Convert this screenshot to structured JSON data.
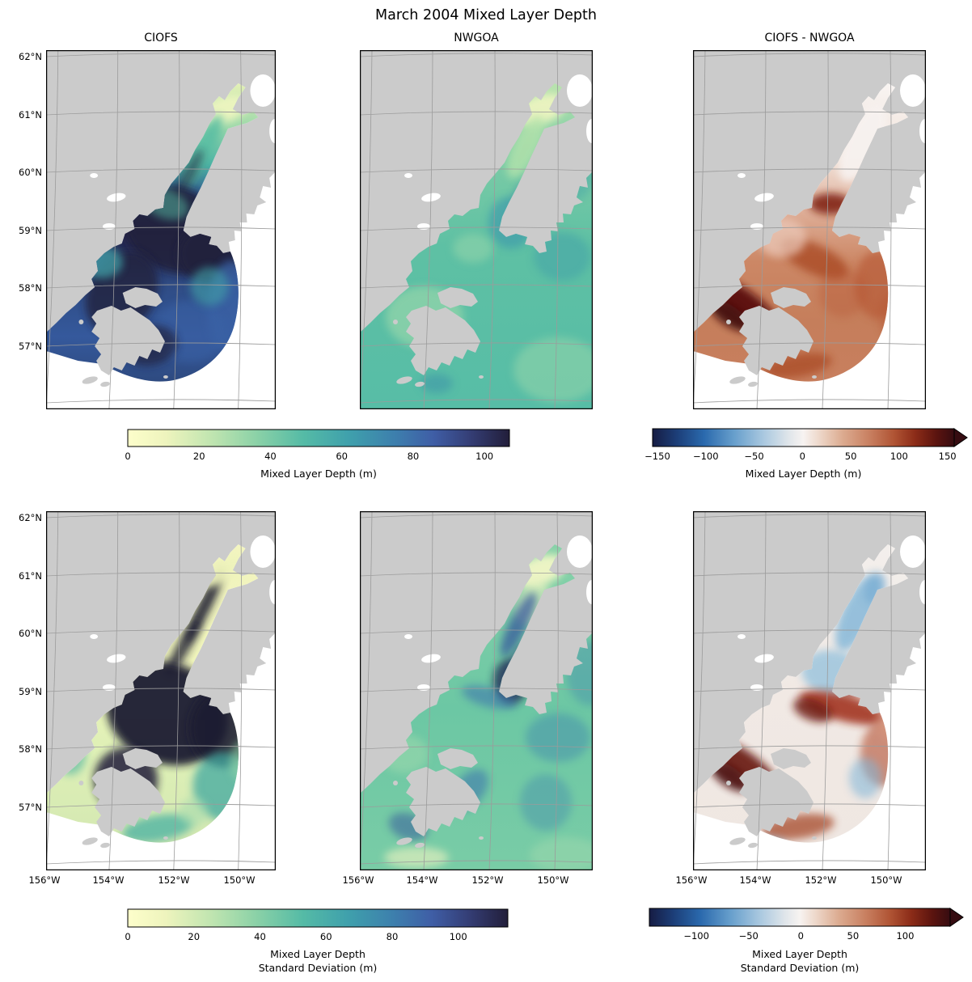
{
  "figure": {
    "title": "March 2004 Mixed Layer Depth",
    "background": "#ffffff",
    "land_color": "#cbcbcb",
    "nodata_color": "#ffffff",
    "graticule_color": "#9b9b9b",
    "border_color": "#000000"
  },
  "map": {
    "lat_ticks": [
      "62°N",
      "61°N",
      "60°N",
      "59°N",
      "58°N",
      "57°N"
    ],
    "lon_ticks": [
      "156°W",
      "154°W",
      "152°W",
      "150°W"
    ]
  },
  "panels": [
    {
      "id": "ciofs-mld",
      "title": "CIOFS",
      "row": 0,
      "col": 0,
      "kind": "ciofs",
      "show_lat": true,
      "show_lon": false,
      "base_stops": [
        [
          0,
          "#e4f1b6"
        ],
        [
          0.15,
          "#9bd8aa"
        ],
        [
          0.27,
          "#4bb2a5"
        ],
        [
          0.38,
          "#30558d"
        ],
        [
          0.5,
          "#242247"
        ],
        [
          0.68,
          "#2f4c85"
        ],
        [
          0.85,
          "#35599c"
        ],
        [
          1,
          "#2e4a80"
        ]
      ],
      "blob_colors": [
        "#edf5bf",
        "#59bda3",
        "#20203e",
        "#3a62a5",
        "#43a2a8",
        "#8fd3a8"
      ]
    },
    {
      "id": "nwgoa-mld",
      "title": "NWGOA",
      "row": 0,
      "col": 1,
      "kind": "nwgoa",
      "show_lat": false,
      "show_lon": false,
      "base_stops": [
        [
          0,
          "#b9e3ae"
        ],
        [
          0.2,
          "#7fcda6"
        ],
        [
          0.5,
          "#5ec0a4"
        ],
        [
          1,
          "#57bda6"
        ]
      ],
      "blob_colors": [
        "#ecf4c0",
        "#b4e2ab",
        "#3f9cab",
        "#3a8fa9",
        "#9bd8ab",
        "#45a3a8"
      ]
    },
    {
      "id": "diff-mld",
      "title": "CIOFS - NWGOA",
      "row": 0,
      "col": 2,
      "kind": "ciofs",
      "show_lat": false,
      "show_lon": false,
      "base_stops": [
        [
          0,
          "#f8f4f2"
        ],
        [
          0.25,
          "#f2e3da"
        ],
        [
          0.42,
          "#dfb09a"
        ],
        [
          0.6,
          "#cc8765"
        ],
        [
          0.8,
          "#c57e5b"
        ],
        [
          1,
          "#c87f5e"
        ]
      ],
      "blob_colors": [
        "#5a100e",
        "#3f0a0c",
        "#7c1f10",
        "#a5421f",
        "#b55430",
        "#eccabb",
        "#f7f2f0"
      ]
    },
    {
      "id": "ciofs-std",
      "title": "",
      "row": 1,
      "col": 0,
      "kind": "ciofs",
      "show_lat": true,
      "show_lon": true,
      "base_stops": [
        [
          0,
          "#f3f5c0"
        ],
        [
          0.4,
          "#eef3ba"
        ],
        [
          0.7,
          "#def0b6"
        ],
        [
          1,
          "#d4e8b2"
        ]
      ],
      "blob_colors": [
        "#1b1a32",
        "#3fa8a0",
        "#8fd3a6",
        "#46b0a2",
        "#a8dcae",
        "#201e3a",
        "#eef3bb"
      ]
    },
    {
      "id": "nwgoa-std",
      "title": "",
      "row": 1,
      "col": 1,
      "kind": "nwgoa",
      "show_lat": false,
      "show_lon": true,
      "base_stops": [
        [
          0,
          "#88d2a9"
        ],
        [
          0.5,
          "#6cc7a4"
        ],
        [
          1,
          "#79cca6"
        ]
      ],
      "blob_colors": [
        "#f2f6c6",
        "#31519b",
        "#222c56",
        "#3a6fae",
        "#3f87ad",
        "#e9f2c0",
        "#9fd9ad",
        "#2b3e77"
      ]
    },
    {
      "id": "diff-std",
      "title": "",
      "row": 1,
      "col": 2,
      "kind": "ciofs",
      "show_lat": false,
      "show_lon": true,
      "base_stops": [
        [
          0,
          "#f3efec"
        ],
        [
          0.5,
          "#f1e9e4"
        ],
        [
          1,
          "#efe7e2"
        ]
      ],
      "blob_colors": [
        "#7fb5d8",
        "#8abddc",
        "#9e2c12",
        "#6b130d",
        "#661210",
        "#490b0c",
        "#b35031",
        "#a03c1c",
        "#6da4cf",
        "#d8987e"
      ]
    }
  ],
  "colorbars": [
    {
      "id": "cb-mld",
      "label_lines": [
        "Mixed Layer Depth (m)"
      ],
      "vmin": 0,
      "vmax": 107,
      "extend_max": false,
      "ticks": [
        {
          "v": 0,
          "label": "0"
        },
        {
          "v": 20,
          "label": "20"
        },
        {
          "v": 40,
          "label": "40"
        },
        {
          "v": 60,
          "label": "60"
        },
        {
          "v": 80,
          "label": "80"
        },
        {
          "v": 100,
          "label": "100"
        }
      ],
      "stops": [
        [
          0,
          "#fdfecb"
        ],
        [
          0.1,
          "#eef4bd"
        ],
        [
          0.22,
          "#c0e5b0"
        ],
        [
          0.34,
          "#8ad1a7"
        ],
        [
          0.46,
          "#55bba6"
        ],
        [
          0.58,
          "#3fa0ac"
        ],
        [
          0.7,
          "#3d7fad"
        ],
        [
          0.8,
          "#3f5ea6"
        ],
        [
          0.9,
          "#343d74"
        ],
        [
          1,
          "#221e3a"
        ]
      ]
    },
    {
      "id": "cb-mld-diff",
      "label_lines": [
        "Mixed Layer Depth (m)"
      ],
      "vmin": -155,
      "vmax": 157,
      "extend_max": true,
      "ticks": [
        {
          "v": -150,
          "label": "−150"
        },
        {
          "v": -100,
          "label": "−100"
        },
        {
          "v": -50,
          "label": "−50"
        },
        {
          "v": 0,
          "label": "0"
        },
        {
          "v": 50,
          "label": "50"
        },
        {
          "v": 100,
          "label": "100"
        },
        {
          "v": 150,
          "label": "150"
        }
      ],
      "stops": [
        [
          0,
          "#161c43"
        ],
        [
          0.08,
          "#1c3e78"
        ],
        [
          0.17,
          "#2a69ad"
        ],
        [
          0.27,
          "#679fcc"
        ],
        [
          0.37,
          "#abc9e0"
        ],
        [
          0.45,
          "#dfe5ea"
        ],
        [
          0.5,
          "#f7f3f1"
        ],
        [
          0.55,
          "#eed9cc"
        ],
        [
          0.63,
          "#dcab90"
        ],
        [
          0.72,
          "#c87f60"
        ],
        [
          0.8,
          "#b05434"
        ],
        [
          0.87,
          "#8c2c18"
        ],
        [
          0.94,
          "#5c140f"
        ],
        [
          1,
          "#360c11"
        ]
      ]
    },
    {
      "id": "cb-std",
      "label_lines": [
        "Mixed Layer Depth",
        "Standard Deviation (m)"
      ],
      "vmin": 0,
      "vmax": 115,
      "extend_max": false,
      "ticks": [
        {
          "v": 0,
          "label": "0"
        },
        {
          "v": 20,
          "label": "20"
        },
        {
          "v": 40,
          "label": "40"
        },
        {
          "v": 60,
          "label": "60"
        },
        {
          "v": 80,
          "label": "80"
        },
        {
          "v": 100,
          "label": "100"
        }
      ],
      "stops": [
        [
          0,
          "#fdfecb"
        ],
        [
          0.1,
          "#eef4bd"
        ],
        [
          0.22,
          "#c0e5b0"
        ],
        [
          0.34,
          "#8ad1a7"
        ],
        [
          0.46,
          "#55bba6"
        ],
        [
          0.58,
          "#3fa0ac"
        ],
        [
          0.7,
          "#3d7fad"
        ],
        [
          0.8,
          "#3f5ea6"
        ],
        [
          0.9,
          "#343d74"
        ],
        [
          1,
          "#221e3a"
        ]
      ]
    },
    {
      "id": "cb-std-diff",
      "label_lines": [
        "Mixed Layer Depth",
        "Standard Deviation (m)"
      ],
      "vmin": -145,
      "vmax": 143,
      "extend_max": true,
      "ticks": [
        {
          "v": -100,
          "label": "−100"
        },
        {
          "v": -50,
          "label": "−50"
        },
        {
          "v": 0,
          "label": "0"
        },
        {
          "v": 50,
          "label": "50"
        },
        {
          "v": 100,
          "label": "100"
        }
      ],
      "stops": [
        [
          0,
          "#161c43"
        ],
        [
          0.08,
          "#1c3e78"
        ],
        [
          0.17,
          "#2a69ad"
        ],
        [
          0.27,
          "#679fcc"
        ],
        [
          0.37,
          "#abc9e0"
        ],
        [
          0.45,
          "#dfe5ea"
        ],
        [
          0.5,
          "#f7f3f1"
        ],
        [
          0.55,
          "#eed9cc"
        ],
        [
          0.63,
          "#dcab90"
        ],
        [
          0.72,
          "#c87f60"
        ],
        [
          0.8,
          "#b05434"
        ],
        [
          0.87,
          "#8c2c18"
        ],
        [
          0.94,
          "#5c140f"
        ],
        [
          1,
          "#360c11"
        ]
      ]
    }
  ],
  "chart_data": {
    "type": "heatmap",
    "title": "March 2004 Mixed Layer Depth",
    "geographic_region": "Cook Inlet and northwestern Gulf of Alaska (Kodiak Island region)",
    "grid": "2 rows x 3 columns of map panels",
    "lat_ticks": [
      "62°N",
      "61°N",
      "60°N",
      "59°N",
      "58°N",
      "57°N"
    ],
    "lon_ticks": [
      "156°W",
      "154°W",
      "152°W",
      "150°W"
    ],
    "panels": [
      {
        "row": 1,
        "col": 1,
        "title": "CIOFS",
        "variable": "Mixed Layer Depth (m)",
        "colormap": "sequential pale-yellow to green to blue to dark-navy",
        "range": [
          0,
          107
        ],
        "summary": "Shallow MLD (<20 m) in upper Cook Inlet; deep MLD (60 to >100 m, dark navy) in lower Cook Inlet, Shelikof Strait and around Kodiak Island; white = outside CIOFS model domain (fan-shaped boundary)."
      },
      {
        "row": 1,
        "col": 2,
        "title": "NWGOA",
        "variable": "Mixed Layer Depth (m)",
        "colormap": "same sequential scale",
        "range": [
          0,
          107
        ],
        "summary": "Relatively uniform 20-45 m MLD across the whole Gulf of Alaska; very shallow (pale yellow) in upper Cook Inlet."
      },
      {
        "row": 1,
        "col": 3,
        "title": "CIOFS - NWGOA",
        "variable": "MLD difference (m)",
        "colormap": "diverging dark-blue / white / dark-red with max-extension arrow",
        "range": [
          -155,
          157
        ],
        "summary": "CIOFS deeper than NWGOA nearly everywhere (red, +20 to +150 m); darkest maroon in Shelikof Strait west of Kodiak; near zero (white) in upper Cook Inlet."
      },
      {
        "row": 2,
        "col": 1,
        "title": "",
        "model": "CIOFS",
        "variable": "MLD standard deviation (m)",
        "colormap": "sequential pale-yellow to dark-navy",
        "range": [
          0,
          115
        ],
        "summary": "Very high std (>100 m, near black) in central lower inlet and Shelikof Strait; low std (pale yellow) in the shallow upper inlet."
      },
      {
        "row": 2,
        "col": 2,
        "title": "",
        "model": "NWGOA",
        "variable": "MLD standard deviation (m)",
        "colormap": "sequential pale-yellow to dark-navy",
        "range": [
          0,
          115
        ],
        "summary": "Moderate std (10-50 m) with eddy-like dark filaments, strongest near the inlet mouth and around Kodiak."
      },
      {
        "row": 2,
        "col": 3,
        "title": "",
        "model": "CIOFS - NWGOA",
        "variable": "MLD std difference (m)",
        "colormap": "diverging dark-blue / white / dark-red with max-extension arrow",
        "range": [
          -145,
          143
        ],
        "summary": "Negative (blue) along the mid Cook Inlet channel; strongly positive (dark red) in Shelikof Strait and east of Kodiak Island."
      }
    ],
    "colorbars": [
      {
        "position": "row 1 left (under CIOFS/NWGOA)",
        "label": "Mixed Layer Depth (m)",
        "ticks": [
          0,
          20,
          40,
          60,
          80,
          100
        ]
      },
      {
        "position": "row 1 right (under difference)",
        "label": "Mixed Layer Depth (m)",
        "ticks": [
          -150,
          -100,
          -50,
          0,
          50,
          100,
          150
        ]
      },
      {
        "position": "row 2 left",
        "label": "Mixed Layer Depth Standard Deviation (m)",
        "ticks": [
          0,
          20,
          40,
          60,
          80,
          100
        ]
      },
      {
        "position": "row 2 right",
        "label": "Mixed Layer Depth Standard Deviation (m)",
        "ticks": [
          -100,
          -50,
          0,
          50,
          100
        ]
      }
    ]
  }
}
